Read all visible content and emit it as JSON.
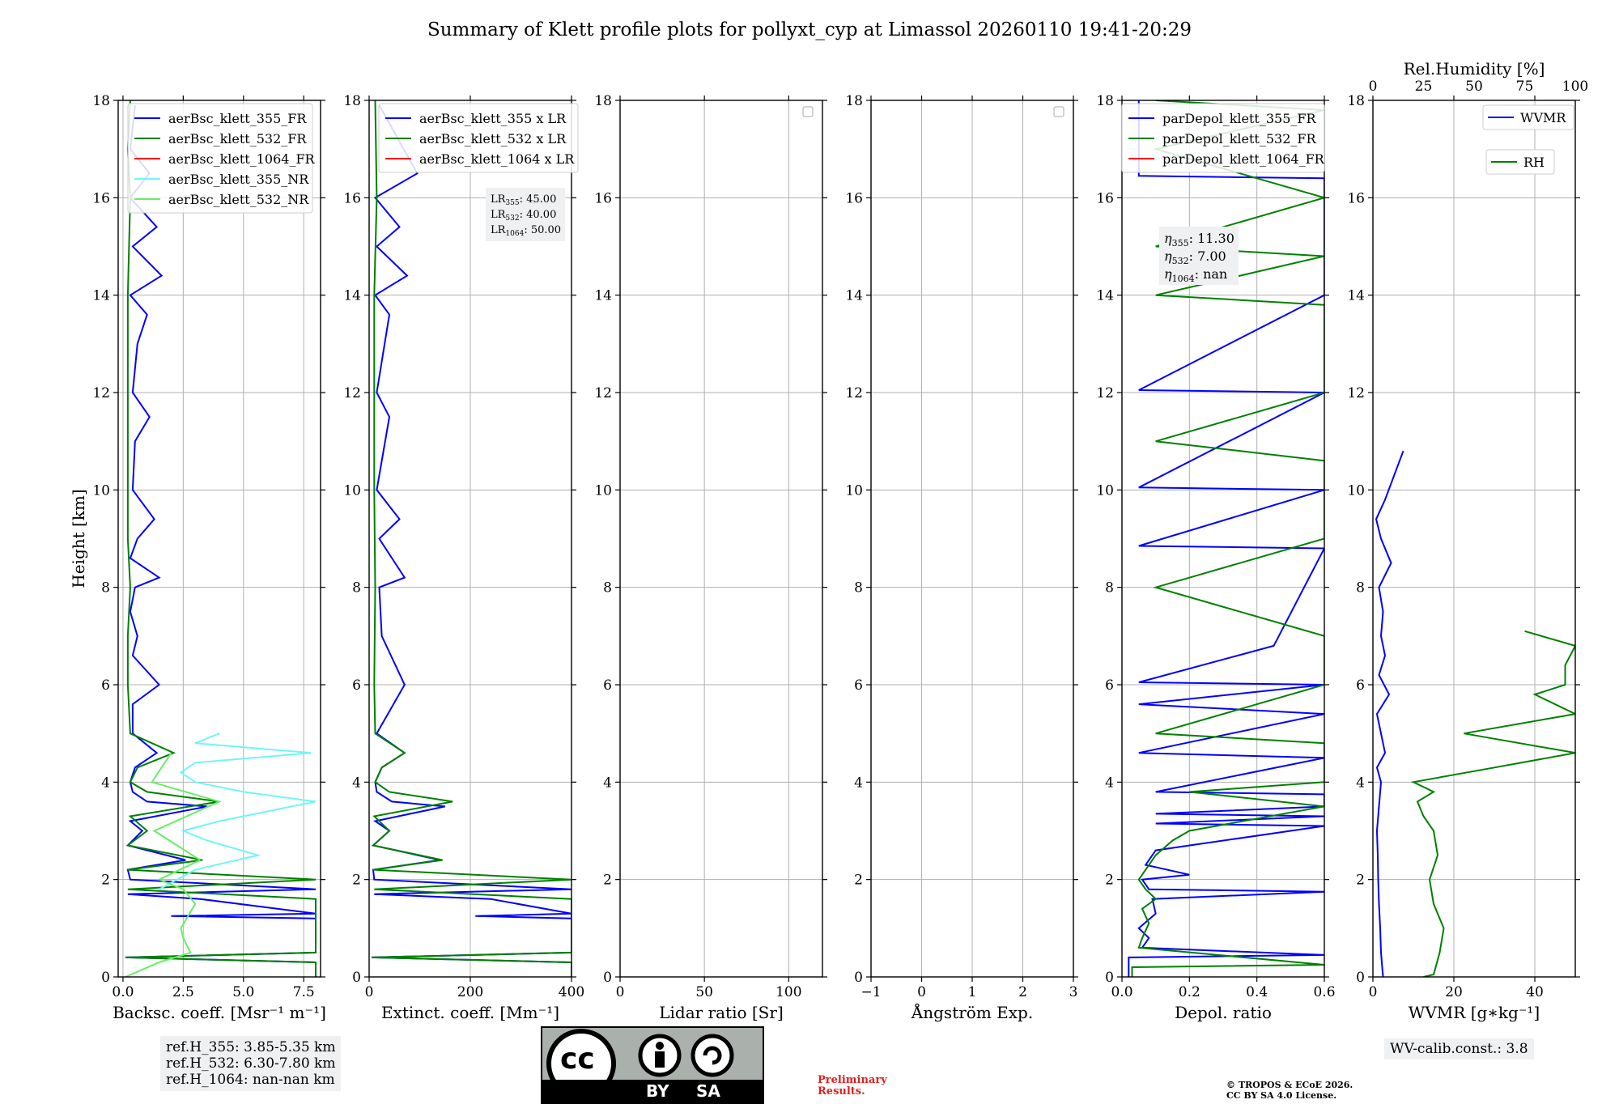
{
  "title": "Summary of Klett profile plots for pollyxt_cyp at Limassol 20260110 19:41-20:29",
  "colors": {
    "blue": "#0000ff",
    "green": "#008000",
    "red": "#ff0000",
    "cyan": "#6ff6f6",
    "lightgreen": "#66ee66",
    "grid": "#b0b0b0",
    "box": "#eef0f2"
  },
  "chart_data": [
    {
      "type": "line",
      "id": "backscatter",
      "xlabel": "Backsc. coeff. [Msr$^{-1}$ m$^{-1}$]",
      "xlabel_text": "Backsc. coeff. [Msr⁻¹ m⁻¹]",
      "ylabel": "Height [km]",
      "xlim": [
        -0.2,
        8.2
      ],
      "ylim": [
        0,
        18
      ],
      "xticks": [
        0,
        2.5,
        5,
        7.5
      ],
      "xtick_labels": [
        "0.0",
        "2.5",
        "5.0",
        "7.5"
      ],
      "yticks": [
        0,
        2,
        4,
        6,
        8,
        10,
        12,
        14,
        16,
        18
      ],
      "legend": [
        {
          "name": "aerBsc_klett_355_FR",
          "color": "#0000ff"
        },
        {
          "name": "aerBsc_klett_532_FR",
          "color": "#008000"
        },
        {
          "name": "aerBsc_klett_1064_FR",
          "color": "#ff0000"
        },
        {
          "name": "aerBsc_klett_355_NR",
          "color": "#6ff6f6"
        },
        {
          "name": "aerBsc_klett_532_NR",
          "color": "#66ee66"
        }
      ],
      "series": [
        {
          "name": "aerBsc_klett_355_FR",
          "color": "#0000ff",
          "h": [
            0,
            0.3,
            0.4,
            0.5,
            0.9,
            1.2,
            1.25,
            1.3,
            1.6,
            1.7,
            1.8,
            2.0,
            2.2,
            2.4,
            2.7,
            3.0,
            3.2,
            3.5,
            3.6,
            3.8,
            4.0,
            4.3,
            4.6,
            5.0,
            5.6,
            6.0,
            6.6,
            7.0,
            7.5,
            8.0,
            8.2,
            8.6,
            9.0,
            9.4,
            10.0,
            11.0,
            11.5,
            12.0,
            13.0,
            13.6,
            14.0,
            14.4,
            15.0,
            15.4,
            16.0,
            16.5,
            17.0,
            17.9
          ],
          "x": [
            8,
            8,
            0.1,
            8,
            8,
            8,
            2.0,
            8,
            3.2,
            0.2,
            8,
            0.3,
            0.2,
            2.6,
            0.2,
            0.8,
            0.3,
            3.5,
            1.0,
            0.4,
            0.3,
            0.5,
            1.4,
            0.4,
            0.4,
            1.5,
            0.4,
            0.6,
            0.3,
            0.5,
            1.5,
            0.3,
            0.6,
            1.3,
            0.4,
            0.5,
            1.1,
            0.4,
            0.6,
            1.0,
            0.3,
            1.6,
            0.4,
            1.4,
            0.3,
            1.1,
            0.3,
            0.5
          ]
        },
        {
          "name": "aerBsc_klett_532_FR",
          "color": "#008000",
          "h": [
            0,
            0.3,
            0.4,
            0.5,
            1.0,
            1.6,
            1.8,
            2.0,
            2.2,
            2.4,
            2.7,
            3.0,
            3.3,
            3.6,
            3.8,
            4.0,
            4.3,
            4.6,
            5.0,
            6.0,
            7.0,
            8.0,
            9.0,
            10.0,
            12.0,
            14.0,
            16.0,
            17.0,
            18.0
          ],
          "x": [
            8,
            8,
            0.1,
            8,
            8,
            8,
            0.2,
            8,
            0.2,
            3.3,
            0.2,
            1.0,
            0.3,
            4.0,
            1.0,
            0.3,
            0.6,
            2.1,
            0.3,
            0.2,
            0.2,
            0.3,
            0.2,
            0.2,
            0.2,
            0.2,
            0.3,
            0.2,
            0.3
          ]
        },
        {
          "name": "aerBsc_klett_355_NR",
          "color": "#6ff6f6",
          "h": [
            1.8,
            2.2,
            2.5,
            2.8,
            3.0,
            3.2,
            3.6,
            3.8,
            4.0,
            4.2,
            4.4,
            4.6,
            4.8,
            5.0
          ],
          "x": [
            1.5,
            3.0,
            5.6,
            3.5,
            2.5,
            4.0,
            8.0,
            5.0,
            3.0,
            2.4,
            3.0,
            7.8,
            3.0,
            4.0
          ]
        },
        {
          "name": "aerBsc_klett_532_NR",
          "color": "#66ee66",
          "h": [
            0,
            0.3,
            0.5,
            0.8,
            1.0,
            1.5,
            1.8,
            2.0,
            2.4,
            3.0,
            3.6,
            4.0,
            4.6
          ],
          "x": [
            0.1,
            1.5,
            2.8,
            2.5,
            2.4,
            3.0,
            2.5,
            1.5,
            3.2,
            1.3,
            4.0,
            1.2,
            2.0
          ]
        }
      ]
    },
    {
      "type": "line",
      "id": "extinction",
      "xlabel_text": "Extinct. coeff. [Mm⁻¹]",
      "xlim": [
        0,
        400
      ],
      "ylim": [
        0,
        18
      ],
      "xticks": [
        0,
        200,
        400
      ],
      "xtick_labels": [
        "0",
        "200",
        "400"
      ],
      "yticks": [
        0,
        2,
        4,
        6,
        8,
        10,
        12,
        14,
        16,
        18
      ],
      "legend": [
        {
          "name": "aerBsc_klett_355 x LR",
          "color": "#0000ff"
        },
        {
          "name": "aerBsc_klett_532 x LR",
          "color": "#008000"
        },
        {
          "name": "aerBsc_klett_1064 x LR",
          "color": "#ff0000"
        }
      ],
      "lidar_ratios": [
        {
          "label": "LR",
          "sub": "355",
          "value": "45.00"
        },
        {
          "label": "LR",
          "sub": "532",
          "value": "40.00"
        },
        {
          "label": "LR",
          "sub": "1064",
          "value": "50.00"
        }
      ],
      "series": [
        {
          "name": "aerBsc_klett_355 x LR",
          "color": "#0000ff",
          "h": [
            0,
            0.3,
            0.4,
            0.5,
            0.9,
            1.2,
            1.25,
            1.3,
            1.6,
            1.7,
            1.8,
            2.0,
            2.2,
            2.4,
            2.7,
            3.0,
            3.2,
            3.5,
            3.6,
            3.8,
            4.0,
            4.3,
            4.6,
            5.0,
            6.0,
            7.0,
            8.0,
            8.2,
            9.0,
            9.4,
            10.0,
            11.5,
            12.0,
            13.6,
            14.0,
            14.4,
            15.0,
            15.4,
            16.0,
            16.5,
            17.9
          ],
          "x": [
            400,
            400,
            5,
            400,
            400,
            400,
            210,
            400,
            240,
            10,
            400,
            10,
            8,
            140,
            8,
            40,
            12,
            150,
            45,
            15,
            12,
            25,
            70,
            15,
            70,
            25,
            20,
            70,
            20,
            60,
            15,
            40,
            15,
            40,
            12,
            75,
            15,
            60,
            12,
            95,
            20
          ]
        },
        {
          "name": "aerBsc_klett_532 x LR",
          "color": "#008000",
          "h": [
            0,
            0.3,
            0.4,
            0.5,
            1.0,
            1.6,
            1.8,
            2.0,
            2.2,
            2.4,
            2.7,
            3.0,
            3.3,
            3.6,
            3.8,
            4.0,
            4.3,
            4.6,
            5.0,
            6.0,
            8.0,
            10.0,
            12.0,
            14.0,
            16.0,
            18.0
          ],
          "x": [
            400,
            400,
            5,
            400,
            400,
            400,
            10,
            400,
            8,
            145,
            8,
            40,
            10,
            165,
            40,
            12,
            25,
            70,
            12,
            10,
            12,
            10,
            10,
            10,
            15,
            12
          ]
        }
      ]
    },
    {
      "type": "line",
      "id": "lidar_ratio",
      "xlabel_text": "Lidar ratio [Sr]",
      "xlim": [
        0,
        120
      ],
      "ylim": [
        0,
        18
      ],
      "xticks": [
        0,
        50,
        100
      ],
      "xtick_labels": [
        "0",
        "50",
        "100"
      ],
      "yticks": [
        0,
        2,
        4,
        6,
        8,
        10,
        12,
        14,
        16,
        18
      ],
      "series": []
    },
    {
      "type": "line",
      "id": "angstrom",
      "xlabel_text": "Ångström Exp.",
      "xlim": [
        -1,
        3
      ],
      "ylim": [
        0,
        18
      ],
      "xticks": [
        -1,
        0,
        1,
        2,
        3
      ],
      "xtick_labels": [
        "−1",
        "0",
        "1",
        "2",
        "3"
      ],
      "yticks": [
        0,
        2,
        4,
        6,
        8,
        10,
        12,
        14,
        16,
        18
      ],
      "series": []
    },
    {
      "type": "line",
      "id": "depol",
      "xlabel_text": "Depol. ratio",
      "xlim": [
        0,
        0.6
      ],
      "ylim": [
        0,
        18
      ],
      "xticks": [
        0,
        0.2,
        0.4,
        0.6
      ],
      "xtick_labels": [
        "0.0",
        "0.2",
        "0.4",
        "0.6"
      ],
      "yticks": [
        0,
        2,
        4,
        6,
        8,
        10,
        12,
        14,
        16,
        18
      ],
      "legend": [
        {
          "name": "parDepol_klett_355_FR",
          "color": "#0000ff"
        },
        {
          "name": "parDepol_klett_532_FR",
          "color": "#008000"
        },
        {
          "name": "parDepol_klett_1064_FR",
          "color": "#ff0000"
        }
      ],
      "eta": [
        {
          "sub": "355",
          "value": "11.30"
        },
        {
          "sub": "532",
          "value": "7.00"
        },
        {
          "sub": "1064",
          "value": "nan"
        }
      ],
      "series": [
        {
          "name": "parDepol_klett_355_FR",
          "color": "#0000ff",
          "h": [
            0,
            0.4,
            0.45,
            0.6,
            0.8,
            1.0,
            1.3,
            1.6,
            1.75,
            1.8,
            2.0,
            2.1,
            2.3,
            2.6,
            3.1,
            3.15,
            3.3,
            3.35,
            3.5,
            3.75,
            3.8,
            4.5,
            4.6,
            5.4,
            5.6,
            6.0,
            6.05,
            6.8,
            8.8,
            8.85,
            10.0,
            10.05,
            12.0,
            12.05,
            14.0,
            16.4,
            16.45,
            18.0
          ],
          "x": [
            0.02,
            0.02,
            0.6,
            0.06,
            0.08,
            0.05,
            0.1,
            0.09,
            0.6,
            0.08,
            0.06,
            0.2,
            0.07,
            0.1,
            0.6,
            0.1,
            0.6,
            0.1,
            0.6,
            0.6,
            0.1,
            0.6,
            0.05,
            0.6,
            0.05,
            0.6,
            0.05,
            0.45,
            0.6,
            0.05,
            0.6,
            0.05,
            0.6,
            0.05,
            0.6,
            0.6,
            0.05,
            0.05
          ]
        },
        {
          "name": "parDepol_klett_532_FR",
          "color": "#008000",
          "h": [
            0,
            0.2,
            0.25,
            0.6,
            0.8,
            1.1,
            1.4,
            1.6,
            1.8,
            2.0,
            2.5,
            2.8,
            3.0,
            3.5,
            3.8,
            4.0,
            4.8,
            5.0,
            6.0,
            7.0,
            8.0,
            9.0,
            10.0,
            10.6,
            11.0,
            12.0,
            13.0,
            13.8,
            14.0,
            14.8,
            15.0,
            16.0,
            17.0,
            17.8,
            18.0
          ],
          "x": [
            0.03,
            0.03,
            0.6,
            0.05,
            0.06,
            0.08,
            0.06,
            0.1,
            0.07,
            0.05,
            0.1,
            0.15,
            0.2,
            0.6,
            0.2,
            0.6,
            0.6,
            0.1,
            0.6,
            0.6,
            0.1,
            0.6,
            0.6,
            0.6,
            0.1,
            0.6,
            0.6,
            0.6,
            0.1,
            0.6,
            0.1,
            0.6,
            0.1,
            0.6,
            0.1
          ]
        }
      ]
    },
    {
      "type": "line",
      "id": "wvmr",
      "xlabel_text": "WVMR [g∗kg⁻¹]",
      "xlim": [
        0,
        50
      ],
      "ylim": [
        0,
        18
      ],
      "xticks": [
        0,
        20,
        40
      ],
      "xtick_labels": [
        "0",
        "20",
        "40"
      ],
      "yticks": [
        0,
        2,
        4,
        6,
        8,
        10,
        12,
        14,
        16,
        18
      ],
      "top_axis": {
        "label": "Rel.Humidity [%]",
        "xlim": [
          0,
          100
        ],
        "ticks": [
          0,
          25,
          50,
          75,
          100
        ],
        "tick_labels": [
          "0",
          "25",
          "50",
          "75",
          "100"
        ]
      },
      "legend": [
        {
          "name": "WVMR",
          "color": "#0000ff"
        },
        {
          "name": "RH",
          "color": "#008000"
        }
      ],
      "series": [
        {
          "name": "WVMR",
          "color": "#0000ff",
          "h": [
            0,
            0.5,
            1.0,
            1.5,
            2.0,
            2.5,
            3.0,
            3.5,
            4.0,
            4.3,
            4.6,
            5.0,
            5.4,
            5.8,
            6.2,
            6.6,
            7.0,
            7.5,
            8.0,
            8.5,
            9.0,
            9.4,
            9.8,
            10.8
          ],
          "x": [
            2.5,
            2.0,
            1.8,
            1.5,
            1.3,
            1.2,
            1.0,
            1.5,
            2.0,
            1.0,
            3.0,
            2.0,
            1.0,
            4.0,
            1.5,
            3.0,
            2.0,
            2.5,
            1.5,
            4.5,
            2.0,
            0.8,
            3.0,
            7.5
          ]
        },
        {
          "name": "RH",
          "axis": "top",
          "color": "#008000",
          "h": [
            0,
            0.05,
            0.5,
            1.0,
            1.5,
            2.0,
            2.5,
            3.0,
            3.3,
            3.6,
            3.8,
            4.0,
            4.3,
            4.6,
            5.0,
            5.4,
            5.8,
            6.0,
            6.4,
            6.8,
            7.1
          ],
          "x": [
            25,
            30,
            33,
            35,
            30,
            28,
            32,
            30,
            25,
            22,
            30,
            20,
            60,
            100,
            45,
            100,
            80,
            95,
            95,
            100,
            75
          ]
        }
      ]
    }
  ],
  "captions": {
    "refs": [
      "ref.H_355: 3.85-5.35 km",
      "ref.H_532: 6.30-7.80 km",
      "ref.H_1064: nan-nan km"
    ],
    "prelim": [
      "Preliminary",
      "Results."
    ],
    "copyright": [
      "© TROPOS & ECoE 2026.",
      "CC BY SA 4.0 License."
    ],
    "wv_calib": "WV-calib.const.: 3.8",
    "license_badge": {
      "by": "BY",
      "sa": "SA",
      "cc": "cc"
    }
  }
}
